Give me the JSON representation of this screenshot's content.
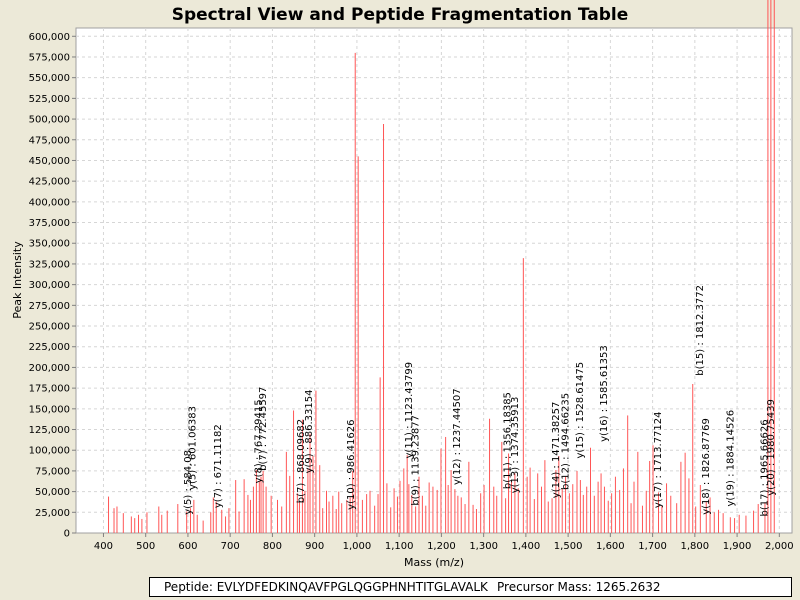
{
  "chart_data": {
    "type": "bar",
    "title": "Spectral View and Peptide Fragmentation Table",
    "xlabel": "Mass (m/z)",
    "ylabel": "Peak Intensity",
    "xlim": [
      335,
      2030
    ],
    "ylim": [
      0,
      610000
    ],
    "xticks": [
      400,
      500,
      600,
      700,
      800,
      900,
      1000,
      1100,
      1200,
      1300,
      1400,
      1500,
      1600,
      1700,
      1800,
      1900,
      2000
    ],
    "xtick_labels": [
      "400",
      "500",
      "600",
      "700",
      "800",
      "900",
      "1,000",
      "1,100",
      "1,200",
      "1,300",
      "1,400",
      "1,500",
      "1,600",
      "1,700",
      "1,800",
      "1,900",
      "2,000"
    ],
    "yticks": [
      0,
      25000,
      50000,
      75000,
      100000,
      125000,
      150000,
      175000,
      200000,
      225000,
      250000,
      275000,
      300000,
      325000,
      350000,
      375000,
      400000,
      425000,
      450000,
      475000,
      500000,
      525000,
      550000,
      575000,
      600000
    ],
    "ytick_labels": [
      "0",
      "25,000",
      "50,000",
      "75,000",
      "100,000",
      "125,000",
      "150,000",
      "175,000",
      "200,000",
      "225,000",
      "250,000",
      "275,000",
      "300,000",
      "325,000",
      "350,000",
      "375,000",
      "400,000",
      "425,000",
      "450,000",
      "475,000",
      "500,000",
      "525,000",
      "550,000",
      "575,000",
      "600,000"
    ],
    "grid": true,
    "color": "#FF5555",
    "peaks": {
      "mz": [
        412,
        425,
        432,
        447,
        466,
        474,
        483,
        491,
        503,
        531,
        538,
        551,
        576,
        597,
        606,
        614,
        622,
        636,
        654,
        660,
        667,
        680,
        689,
        697,
        713,
        721,
        733,
        742,
        748,
        755,
        762,
        769,
        773,
        778,
        785,
        797,
        812,
        822,
        833,
        841,
        850,
        859,
        864,
        871,
        877,
        884,
        889,
        896,
        903,
        912,
        919,
        928,
        934,
        943,
        951,
        957,
        964,
        976,
        984,
        990,
        996,
        1003,
        1013,
        1023,
        1031,
        1042,
        1050,
        1055,
        1063,
        1071,
        1080,
        1088,
        1096,
        1102,
        1111,
        1119,
        1123,
        1130,
        1139,
        1147,
        1155,
        1163,
        1171,
        1180,
        1190,
        1199,
        1210,
        1216,
        1223,
        1232,
        1239,
        1247,
        1256,
        1265,
        1275,
        1283,
        1293,
        1301,
        1314,
        1324,
        1331,
        1343,
        1352,
        1359,
        1366,
        1374,
        1382,
        1394,
        1403,
        1410,
        1420,
        1428,
        1437,
        1445,
        1453,
        1462,
        1471,
        1478,
        1486,
        1494,
        1503,
        1511,
        1521,
        1529,
        1536,
        1544,
        1553,
        1562,
        1571,
        1578,
        1586,
        1595,
        1603,
        1612,
        1622,
        1631,
        1641,
        1649,
        1656,
        1665,
        1676,
        1685,
        1693,
        1701,
        1714,
        1722,
        1733,
        1743,
        1757,
        1767,
        1777,
        1786,
        1795,
        1802,
        1813,
        1827,
        1836,
        1846,
        1856,
        1867,
        1884,
        1894,
        1905,
        1921,
        1939,
        1950,
        1966,
        1973,
        1980,
        1988
      ],
      "intensity": [
        44000,
        30000,
        32000,
        24000,
        20000,
        18000,
        22000,
        17000,
        25000,
        32000,
        22000,
        27000,
        35000,
        26000,
        30000,
        40000,
        22000,
        15000,
        25000,
        43000,
        38000,
        28000,
        20000,
        30000,
        64000,
        26000,
        65000,
        46000,
        40000,
        56000,
        76000,
        62000,
        68000,
        75000,
        56000,
        45000,
        40000,
        32000,
        98000,
        69000,
        148000,
        48000,
        38000,
        137000,
        51000,
        78000,
        120000,
        93000,
        172000,
        82000,
        30000,
        51000,
        38000,
        45000,
        29000,
        50000,
        36000,
        40000,
        43000,
        75000,
        580000,
        455000,
        40000,
        47000,
        51000,
        33000,
        47000,
        188000,
        494000,
        60000,
        31000,
        54000,
        44000,
        63000,
        78000,
        94000,
        59000,
        46000,
        32000,
        68000,
        45000,
        33000,
        61000,
        56000,
        52000,
        102000,
        116000,
        58000,
        76000,
        53000,
        45000,
        43000,
        35000,
        86000,
        34000,
        29000,
        48000,
        58000,
        138000,
        56000,
        45000,
        110000,
        42000,
        96000,
        63000,
        72000,
        54000,
        332000,
        68000,
        79000,
        41000,
        72000,
        56000,
        88000,
        38000,
        42000,
        76000,
        93000,
        54000,
        68000,
        48000,
        59000,
        75000,
        64000,
        46000,
        56000,
        103000,
        45000,
        62000,
        72000,
        56000,
        39000,
        48000,
        68000,
        52000,
        78000,
        142000,
        36000,
        62000,
        98000,
        33000,
        51000,
        87000,
        106000,
        49000,
        33000,
        60000,
        45000,
        36000,
        86000,
        97000,
        66000,
        180000,
        32000,
        58000,
        38000,
        43000,
        25000,
        28000,
        24000,
        19000,
        18000,
        22000,
        21000,
        27000,
        35000,
        37000
      ]
    },
    "annotations": [
      {
        "label": "y(5) : 584.08",
        "mz": 600,
        "intensity": 22000
      },
      {
        "label": "y(5) : 601.06383",
        "mz": 611,
        "intensity": 52000
      },
      {
        "label": "y(7) : 671.11182",
        "mz": 671,
        "intensity": 30000
      },
      {
        "label": "y(8) : 767.29415",
        "mz": 767,
        "intensity": 60000
      },
      {
        "label": "b(7) : 772.45597",
        "mz": 778,
        "intensity": 75000
      },
      {
        "label": "b(7) : 868.09682",
        "mz": 868,
        "intensity": 36000
      },
      {
        "label": "y(9) : 886.33154",
        "mz": 886,
        "intensity": 72000
      },
      {
        "label": "y(10) : 986.41626",
        "mz": 986,
        "intensity": 28000
      },
      {
        "label": "b(9) : 1139.23877",
        "mz": 1139,
        "intensity": 33000
      },
      {
        "label": "y(11) : 1123.43799",
        "mz": 1123,
        "intensity": 90000
      },
      {
        "label": "y(12) : 1237.44507",
        "mz": 1237,
        "intensity": 58000
      },
      {
        "label": "b(11) : 1356.18385",
        "mz": 1356,
        "intensity": 53000
      },
      {
        "label": "y(13) : 1374.35913",
        "mz": 1374,
        "intensity": 48000
      },
      {
        "label": "y(14) : 1471.38257",
        "mz": 1471,
        "intensity": 42000
      },
      {
        "label": "b(12) : 1494.66235",
        "mz": 1494,
        "intensity": 52000
      },
      {
        "label": "y(15) : 1528.61475",
        "mz": 1528,
        "intensity": 90000
      },
      {
        "label": "y(16) : 1585.61353",
        "mz": 1585,
        "intensity": 110000
      },
      {
        "label": "y(17) : 1713.77124",
        "mz": 1713,
        "intensity": 30000
      },
      {
        "label": "b(15) : 1812.3772",
        "mz": 1812,
        "intensity": 190000
      },
      {
        "label": "y(18) : 1826.87769",
        "mz": 1826,
        "intensity": 22000
      },
      {
        "label": "y(19) : 1884.14526",
        "mz": 1884,
        "intensity": 32000
      },
      {
        "label": "b(17) : 1965.66626",
        "mz": 1965,
        "intensity": 20000
      },
      {
        "label": "y(20) : 1980.75439",
        "mz": 1980,
        "intensity": 45000
      }
    ]
  },
  "info": {
    "peptide": "Peptide: EVLYDFEDKINQAVFPGLQGGPHNHTITGLAVALK",
    "precursor": "Precursor Mass: 1265.2632"
  }
}
